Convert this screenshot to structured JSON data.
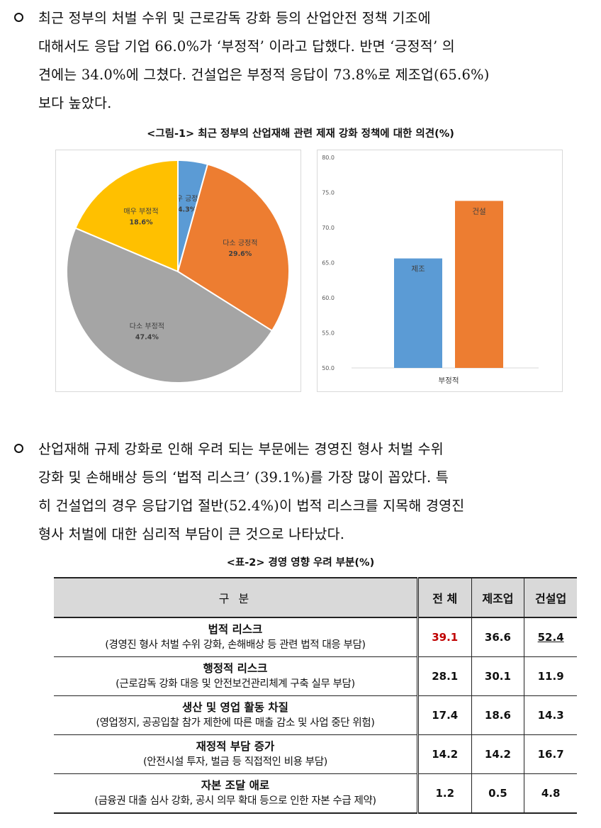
{
  "paragraphs": [
    {
      "lines": [
        "최근 정부의 처벌 수위 및 근로감독 강화 등의 산업안전 정책 기조에",
        "대해서도 응답 기업 66.0%가 ‘부정적’ 이라고 답했다. 반면 ‘긍정적’ 의",
        "견에는 34.0%에 그쳤다. 건설업은 부정적 응답이 73.8%로 제조업(65.6%)",
        "보다 높았다."
      ]
    },
    {
      "lines": [
        "산업재해 규제 강화로 인해 우려 되는 부문에는 경영진 형사 처벌 수위",
        "강화 및 손해배상 등의 ‘법적 리스크’ (39.1%)를 가장 많이 꼽았다. 특",
        "히 건설업의 경우 응답기업 절반(52.4%)이 법적 리스크를 지목해 경영진",
        "형사 처벌에 대한 심리적 부담이 큰 것으로 나타났다."
      ]
    }
  ],
  "figure_caption": "<그림-1> 최근 정부의 산업재해 관련 제재 강화 정책에 대한 의견(%)",
  "table_caption": "<표-2> 경영 영향 우려 부분(%)",
  "chart_data": [
    {
      "type": "pie",
      "title": "",
      "slices": [
        {
          "label": "매우 긍정적",
          "value": 4.3,
          "value_label": "4.3%",
          "color": "#5b9bd5"
        },
        {
          "label": "다소 긍정적",
          "value": 29.6,
          "value_label": "29.6%",
          "color": "#ed7d31"
        },
        {
          "label": "다소 부정적",
          "value": 47.4,
          "value_label": "47.4%",
          "color": "#a5a5a5"
        },
        {
          "label": "매우 부정적",
          "value": 18.6,
          "value_label": "18.6%",
          "color": "#ffc000"
        }
      ]
    },
    {
      "type": "bar",
      "title": "",
      "categories": [
        "부정적"
      ],
      "series": [
        {
          "name": "제조",
          "values": [
            65.6
          ],
          "color": "#5b9bd5"
        },
        {
          "name": "건설",
          "values": [
            73.8
          ],
          "color": "#ed7d31"
        }
      ],
      "ylim": [
        50,
        80
      ],
      "yticks": [
        "80.0",
        "75.0",
        "70.0",
        "65.0",
        "60.0",
        "55.0",
        "50.0"
      ],
      "xlabel": "",
      "ylabel": "",
      "grid": false,
      "legend": "none"
    }
  ],
  "table": {
    "headers": {
      "category": "구 분",
      "total": "전 체",
      "manufacturing": "제조업",
      "construction": "건설업"
    },
    "rows": [
      {
        "name": "법적 리스크",
        "desc": "(경영진 형사 처벌 수위 강화, 손해배상 등 관련 법적 대응 부담)",
        "total": "39.1",
        "manufacturing": "36.6",
        "construction": "52.4"
      },
      {
        "name": "행정적 리스크",
        "desc": "(근로감독 강화 대응 및 안전보건관리체계 구축 실무 부담)",
        "total": "28.1",
        "manufacturing": "30.1",
        "construction": "11.9"
      },
      {
        "name": "생산 및 영업 활동 차질",
        "desc": "(영업정지, 공공입찰 참가 제한에 따른 매출 감소 및 사업 중단 위험)",
        "total": "17.4",
        "manufacturing": "18.6",
        "construction": "14.3"
      },
      {
        "name": "재정적 부담 증가",
        "desc": "(안전시설 투자, 벌금 등 직접적인 비용 부담)",
        "total": "14.2",
        "manufacturing": "14.2",
        "construction": "16.7"
      },
      {
        "name": "자본 조달 애로",
        "desc": "(금융권 대출 심사 강화, 공시 의무 확대 등으로 인한 자본 수급 제약)",
        "total": "1.2",
        "manufacturing": "0.5",
        "construction": "4.8"
      }
    ],
    "highlight_color": "#c00000"
  }
}
